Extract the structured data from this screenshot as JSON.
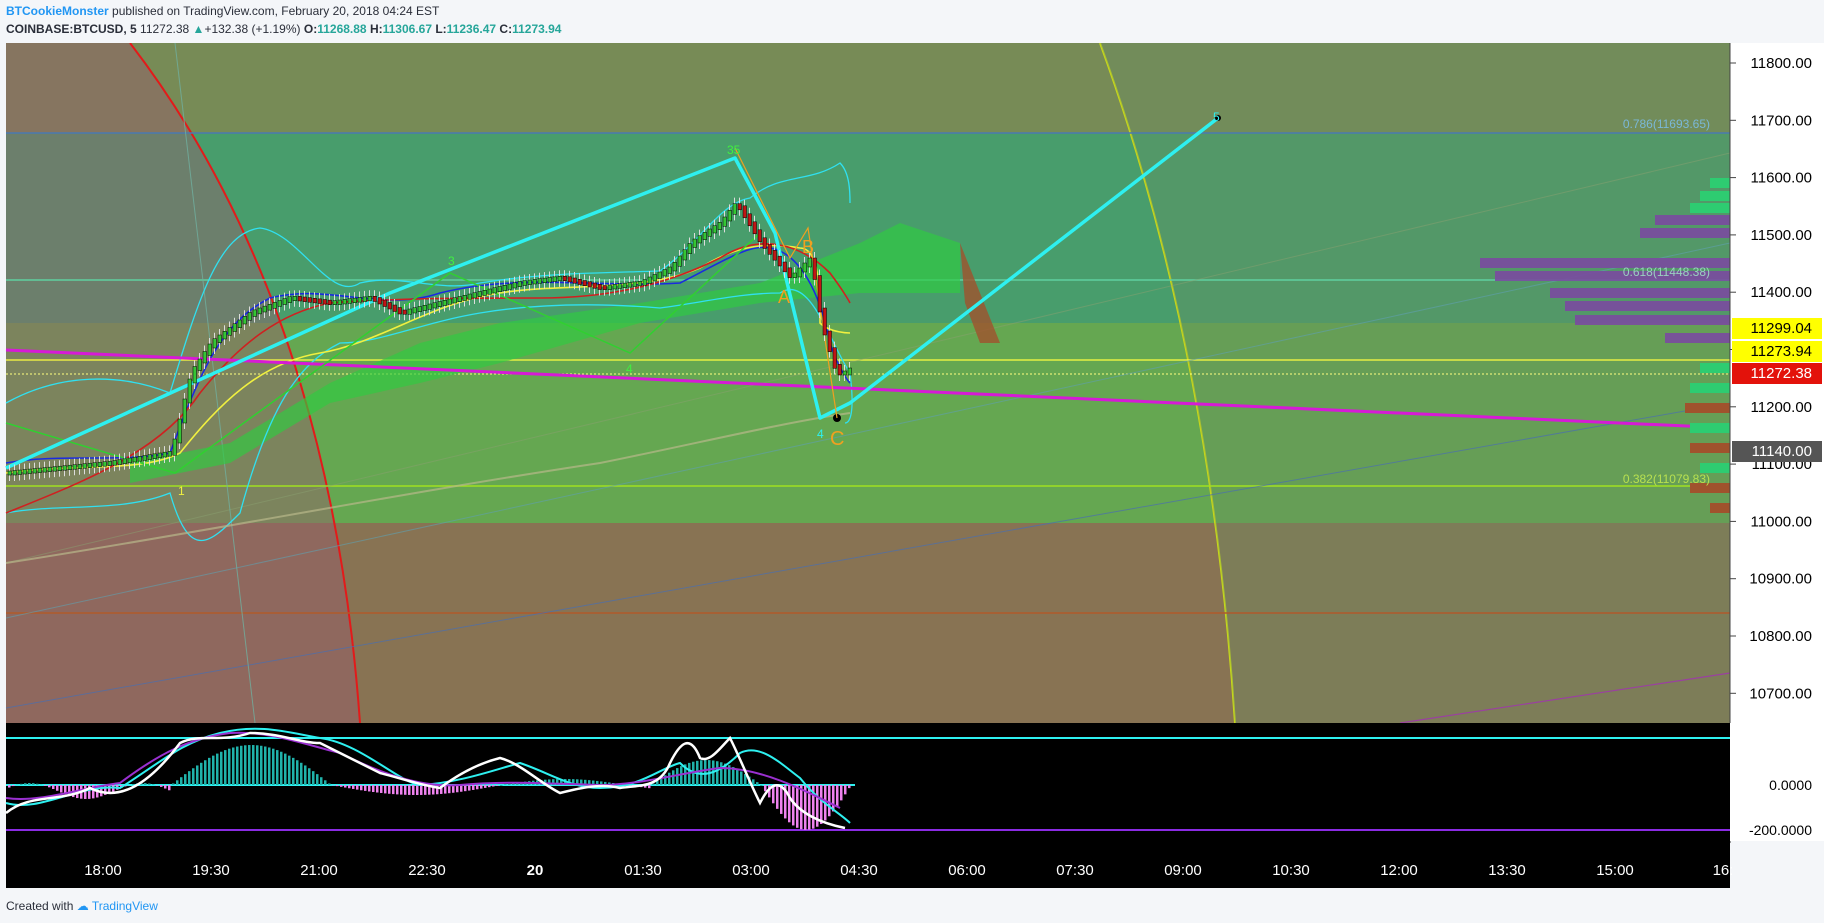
{
  "header": {
    "author": "BTCookieMonster",
    "published_text": "published on TradingView.com, February 20, 2018 04:24 EST",
    "symbol": "COINBASE:BTCUSD, 5",
    "last_price": "11272.38",
    "change": "+132.38 (+1.19%)",
    "o_label": "O:",
    "o_value": "11268.88",
    "h_label": "H:",
    "h_value": "11306.67",
    "l_label": "L:",
    "l_value": "11236.47",
    "c_label": "C:",
    "c_value": "11273.94"
  },
  "price_axis": {
    "ticks": [
      "11800.00",
      "11700.00",
      "11600.00",
      "11500.00",
      "11400.00",
      "11300.00",
      "11200.00",
      "11100.00",
      "11000.00",
      "10900.00",
      "10800.00",
      "10700.00"
    ],
    "badges": [
      {
        "label": "11299.04",
        "color": "#ffff00",
        "text_color": "#000000"
      },
      {
        "label": "11273.94",
        "color": "#ffff00",
        "text_color": "#000000"
      },
      {
        "label": "11272.38",
        "color": "#e3120b",
        "text_color": "#ffffff"
      },
      {
        "label": "11140.00",
        "color": "#555555",
        "text_color": "#ffffff"
      }
    ]
  },
  "macd_axis": {
    "ticks": [
      "0.0000",
      "-200.0000"
    ]
  },
  "time_axis": {
    "ticks": [
      "18:00",
      "19:30",
      "21:00",
      "22:30",
      "20",
      "01:30",
      "03:00",
      "04:30",
      "06:00",
      "07:30",
      "09:00",
      "10:30",
      "12:00",
      "13:30",
      "15:00",
      "16:"
    ]
  },
  "annotations": {
    "fib_786": "0.786(11693.65)",
    "fib_618": "0.618(11448.38)",
    "fib_382": "0.382(11079.83)",
    "wave_labels": [
      "1",
      "2",
      "3",
      "35",
      "4",
      "5",
      "4"
    ],
    "abc_labels": [
      "A",
      "B",
      "C"
    ]
  },
  "colors": {
    "accent_cyan": "#2ef0f0",
    "magenta_trend": "#d61ad6",
    "candle_up": "#35c535",
    "candle_down": "#c21515"
  },
  "footer": {
    "created_with": "Created with",
    "brand": "TradingView"
  }
}
